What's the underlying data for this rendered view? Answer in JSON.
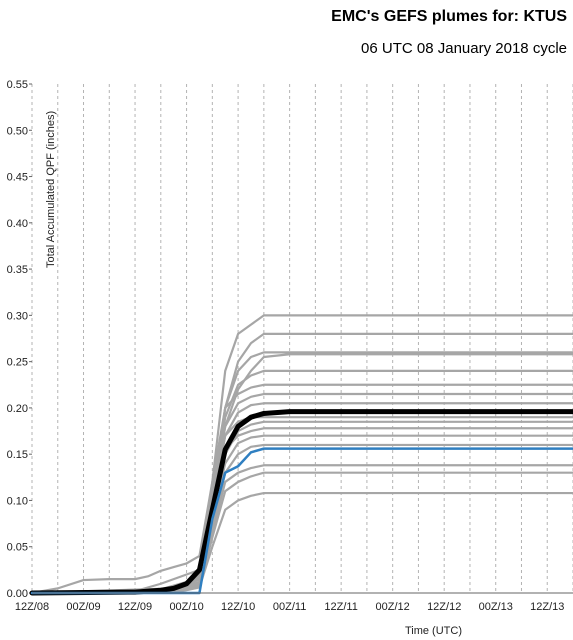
{
  "chart_data": {
    "type": "line",
    "title": "EMC's GEFS plumes for: KTUS",
    "subtitle": "06 UTC 08 January 2018 cycle",
    "xlabel": "Time (UTC)",
    "ylabel": "Total Accumulated QPF (inches)",
    "ylim": [
      0,
      0.55
    ],
    "yticks": [
      "0.00",
      "0.05",
      "0.10",
      "0.15",
      "0.20",
      "0.25",
      "0.30",
      "0.35",
      "0.40",
      "0.45",
      "0.50",
      "0.55"
    ],
    "xlim": [
      6,
      132
    ],
    "xticks": [
      {
        "h": 6,
        "label": "12Z/08"
      },
      {
        "h": 18,
        "label": "00Z/09"
      },
      {
        "h": 30,
        "label": "12Z/09"
      },
      {
        "h": 42,
        "label": "00Z/10"
      },
      {
        "h": 54,
        "label": "12Z/10"
      },
      {
        "h": 66,
        "label": "00Z/11"
      },
      {
        "h": 78,
        "label": "12Z/11"
      },
      {
        "h": 90,
        "label": "00Z/12"
      },
      {
        "h": 102,
        "label": "12Z/12"
      },
      {
        "h": 114,
        "label": "00Z/13"
      },
      {
        "h": 126,
        "label": "12Z/13"
      }
    ],
    "grid": "vertical dashed",
    "colors": {
      "members": "#a6a6a6",
      "mean": "#000000",
      "control": "#2f7fc1",
      "grid": "#b3b3b3"
    },
    "series": [
      {
        "role": "member",
        "points": [
          [
            0,
            0
          ],
          [
            12,
            0.005
          ],
          [
            18,
            0.014
          ],
          [
            24,
            0.015
          ],
          [
            30,
            0.015
          ],
          [
            33,
            0.018
          ],
          [
            36,
            0.024
          ],
          [
            39,
            0.028
          ],
          [
            42,
            0.032
          ],
          [
            45,
            0.04
          ],
          [
            48,
            0.12
          ],
          [
            51,
            0.24
          ],
          [
            54,
            0.28
          ],
          [
            57,
            0.29
          ],
          [
            60,
            0.3
          ],
          [
            66,
            0.3
          ],
          [
            132,
            0.3
          ]
        ]
      },
      {
        "role": "member",
        "points": [
          [
            0,
            0
          ],
          [
            30,
            0.002
          ],
          [
            36,
            0.01
          ],
          [
            42,
            0.02
          ],
          [
            45,
            0.025
          ],
          [
            48,
            0.09
          ],
          [
            51,
            0.2
          ],
          [
            54,
            0.25
          ],
          [
            57,
            0.27
          ],
          [
            60,
            0.28
          ],
          [
            66,
            0.28
          ],
          [
            132,
            0.28
          ]
        ]
      },
      {
        "role": "member",
        "points": [
          [
            0,
            0
          ],
          [
            36,
            0.004
          ],
          [
            42,
            0.012
          ],
          [
            45,
            0.02
          ],
          [
            48,
            0.11
          ],
          [
            51,
            0.2
          ],
          [
            54,
            0.24
          ],
          [
            57,
            0.255
          ],
          [
            60,
            0.26
          ],
          [
            132,
            0.26
          ]
        ]
      },
      {
        "role": "member",
        "points": [
          [
            0,
            0
          ],
          [
            36,
            0.002
          ],
          [
            42,
            0.008
          ],
          [
            45,
            0.015
          ],
          [
            48,
            0.1
          ],
          [
            51,
            0.18
          ],
          [
            54,
            0.22
          ],
          [
            57,
            0.24
          ],
          [
            60,
            0.255
          ],
          [
            66,
            0.258
          ],
          [
            132,
            0.258
          ]
        ]
      },
      {
        "role": "member",
        "points": [
          [
            0,
            0
          ],
          [
            39,
            0.004
          ],
          [
            42,
            0.01
          ],
          [
            45,
            0.02
          ],
          [
            48,
            0.09
          ],
          [
            51,
            0.19
          ],
          [
            54,
            0.225
          ],
          [
            57,
            0.235
          ],
          [
            60,
            0.24
          ],
          [
            132,
            0.24
          ]
        ]
      },
      {
        "role": "member",
        "points": [
          [
            0,
            0
          ],
          [
            39,
            0.005
          ],
          [
            42,
            0.012
          ],
          [
            45,
            0.02
          ],
          [
            48,
            0.12
          ],
          [
            51,
            0.2
          ],
          [
            54,
            0.215
          ],
          [
            57,
            0.222
          ],
          [
            60,
            0.225
          ],
          [
            132,
            0.225
          ]
        ]
      },
      {
        "role": "member",
        "points": [
          [
            0,
            0
          ],
          [
            39,
            0.003
          ],
          [
            42,
            0.01
          ],
          [
            45,
            0.018
          ],
          [
            48,
            0.1
          ],
          [
            51,
            0.18
          ],
          [
            54,
            0.205
          ],
          [
            57,
            0.212
          ],
          [
            60,
            0.215
          ],
          [
            132,
            0.215
          ]
        ]
      },
      {
        "role": "member",
        "points": [
          [
            0,
            0
          ],
          [
            39,
            0.003
          ],
          [
            42,
            0.008
          ],
          [
            45,
            0.015
          ],
          [
            48,
            0.095
          ],
          [
            51,
            0.17
          ],
          [
            54,
            0.195
          ],
          [
            57,
            0.203
          ],
          [
            60,
            0.205
          ],
          [
            132,
            0.205
          ]
        ]
      },
      {
        "role": "member",
        "points": [
          [
            0,
            0
          ],
          [
            39,
            0.003
          ],
          [
            42,
            0.008
          ],
          [
            45,
            0.016
          ],
          [
            48,
            0.1
          ],
          [
            51,
            0.17
          ],
          [
            54,
            0.185
          ],
          [
            57,
            0.19
          ],
          [
            60,
            0.19
          ],
          [
            132,
            0.19
          ]
        ]
      },
      {
        "role": "member",
        "points": [
          [
            0,
            0
          ],
          [
            39,
            0.002
          ],
          [
            42,
            0.006
          ],
          [
            45,
            0.012
          ],
          [
            48,
            0.08
          ],
          [
            51,
            0.15
          ],
          [
            54,
            0.175
          ],
          [
            57,
            0.182
          ],
          [
            60,
            0.185
          ],
          [
            132,
            0.185
          ]
        ]
      },
      {
        "role": "member",
        "points": [
          [
            0,
            0
          ],
          [
            39,
            0.002
          ],
          [
            42,
            0.006
          ],
          [
            45,
            0.012
          ],
          [
            48,
            0.085
          ],
          [
            51,
            0.155
          ],
          [
            54,
            0.17
          ],
          [
            57,
            0.175
          ],
          [
            60,
            0.178
          ],
          [
            132,
            0.178
          ]
        ]
      },
      {
        "role": "member",
        "points": [
          [
            0,
            0
          ],
          [
            39,
            0.002
          ],
          [
            42,
            0.005
          ],
          [
            45,
            0.01
          ],
          [
            48,
            0.08
          ],
          [
            51,
            0.14
          ],
          [
            54,
            0.162
          ],
          [
            57,
            0.168
          ],
          [
            60,
            0.17
          ],
          [
            132,
            0.17
          ]
        ]
      },
      {
        "role": "member",
        "points": [
          [
            0,
            0
          ],
          [
            40,
            0.002
          ],
          [
            42,
            0.004
          ],
          [
            45,
            0.008
          ],
          [
            48,
            0.07
          ],
          [
            51,
            0.13
          ],
          [
            54,
            0.15
          ],
          [
            57,
            0.158
          ],
          [
            60,
            0.16
          ],
          [
            132,
            0.16
          ]
        ]
      },
      {
        "role": "member",
        "points": [
          [
            0,
            0
          ],
          [
            40,
            0.002
          ],
          [
            42,
            0.004
          ],
          [
            45,
            0.008
          ],
          [
            48,
            0.065
          ],
          [
            51,
            0.12
          ],
          [
            54,
            0.13
          ],
          [
            57,
            0.135
          ],
          [
            60,
            0.138
          ],
          [
            66,
            0.138
          ],
          [
            132,
            0.138
          ]
        ]
      },
      {
        "role": "member",
        "points": [
          [
            0,
            0
          ],
          [
            40,
            0.002
          ],
          [
            42,
            0.004
          ],
          [
            45,
            0.007
          ],
          [
            48,
            0.06
          ],
          [
            51,
            0.11
          ],
          [
            54,
            0.12
          ],
          [
            57,
            0.126
          ],
          [
            60,
            0.13
          ],
          [
            132,
            0.13
          ]
        ]
      },
      {
        "role": "member",
        "points": [
          [
            0,
            0
          ],
          [
            40,
            0.001
          ],
          [
            42,
            0.003
          ],
          [
            45,
            0.006
          ],
          [
            48,
            0.05
          ],
          [
            51,
            0.09
          ],
          [
            54,
            0.1
          ],
          [
            57,
            0.105
          ],
          [
            60,
            0.108
          ],
          [
            132,
            0.108
          ]
        ]
      },
      {
        "role": "mean",
        "points": [
          [
            0,
            0
          ],
          [
            30,
            0.001
          ],
          [
            36,
            0.003
          ],
          [
            39,
            0.005
          ],
          [
            42,
            0.01
          ],
          [
            45,
            0.025
          ],
          [
            48,
            0.09
          ],
          [
            51,
            0.155
          ],
          [
            54,
            0.18
          ],
          [
            57,
            0.19
          ],
          [
            60,
            0.194
          ],
          [
            66,
            0.196
          ],
          [
            132,
            0.196
          ]
        ]
      },
      {
        "role": "control",
        "points": [
          [
            0,
            0
          ],
          [
            42,
            0
          ],
          [
            45,
            0
          ],
          [
            48,
            0.08
          ],
          [
            51,
            0.13
          ],
          [
            54,
            0.137
          ],
          [
            57,
            0.152
          ],
          [
            60,
            0.156
          ],
          [
            132,
            0.156
          ]
        ]
      }
    ]
  }
}
